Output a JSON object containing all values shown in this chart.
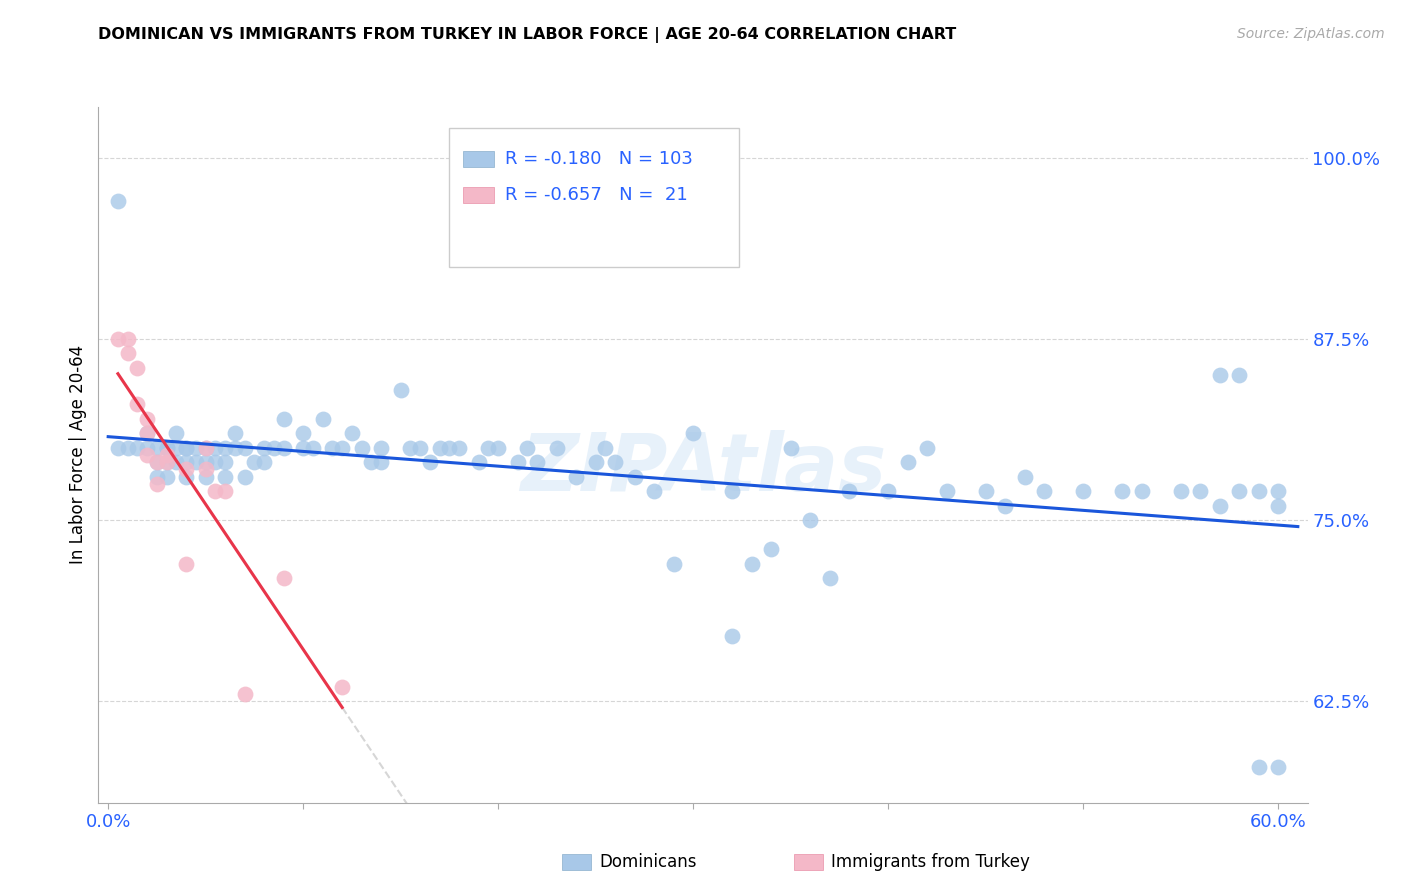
{
  "title": "DOMINICAN VS IMMIGRANTS FROM TURKEY IN LABOR FORCE | AGE 20-64 CORRELATION CHART",
  "source": "Source: ZipAtlas.com",
  "ylabel": "In Labor Force | Age 20-64",
  "xlim": [
    -0.005,
    0.615
  ],
  "ylim": [
    0.555,
    1.035
  ],
  "blue_R": -0.18,
  "blue_N": 103,
  "pink_R": -0.657,
  "pink_N": 21,
  "blue_color": "#a8c8e8",
  "pink_color": "#f4b8c8",
  "blue_line_color": "#1a56db",
  "pink_line_color": "#e8354a",
  "watermark": "ZIPAtlas",
  "legend_label_1": "Dominicans",
  "legend_label_2": "Immigrants from Turkey",
  "blue_scatter_x": [
    0.005,
    0.01,
    0.015,
    0.02,
    0.02,
    0.025,
    0.025,
    0.025,
    0.03,
    0.03,
    0.03,
    0.03,
    0.035,
    0.035,
    0.035,
    0.04,
    0.04,
    0.04,
    0.04,
    0.045,
    0.045,
    0.05,
    0.05,
    0.05,
    0.055,
    0.055,
    0.06,
    0.06,
    0.06,
    0.065,
    0.065,
    0.07,
    0.07,
    0.075,
    0.08,
    0.08,
    0.085,
    0.09,
    0.09,
    0.1,
    0.1,
    0.105,
    0.11,
    0.115,
    0.12,
    0.125,
    0.13,
    0.135,
    0.14,
    0.14,
    0.15,
    0.155,
    0.16,
    0.165,
    0.17,
    0.175,
    0.18,
    0.19,
    0.195,
    0.2,
    0.21,
    0.215,
    0.22,
    0.23,
    0.24,
    0.25,
    0.255,
    0.26,
    0.27,
    0.28,
    0.29,
    0.3,
    0.32,
    0.33,
    0.34,
    0.35,
    0.36,
    0.37,
    0.38,
    0.4,
    0.41,
    0.42,
    0.43,
    0.45,
    0.47,
    0.48,
    0.5,
    0.52,
    0.53,
    0.55,
    0.56,
    0.57,
    0.58,
    0.59,
    0.6,
    0.32,
    0.46,
    0.57,
    0.59,
    0.6,
    0.005,
    0.58,
    0.6
  ],
  "blue_scatter_y": [
    0.8,
    0.8,
    0.8,
    0.81,
    0.8,
    0.8,
    0.79,
    0.78,
    0.8,
    0.79,
    0.78,
    0.8,
    0.79,
    0.8,
    0.81,
    0.79,
    0.8,
    0.78,
    0.8,
    0.8,
    0.79,
    0.8,
    0.79,
    0.78,
    0.8,
    0.79,
    0.8,
    0.79,
    0.78,
    0.81,
    0.8,
    0.8,
    0.78,
    0.79,
    0.8,
    0.79,
    0.8,
    0.82,
    0.8,
    0.81,
    0.8,
    0.8,
    0.82,
    0.8,
    0.8,
    0.81,
    0.8,
    0.79,
    0.8,
    0.79,
    0.84,
    0.8,
    0.8,
    0.79,
    0.8,
    0.8,
    0.8,
    0.79,
    0.8,
    0.8,
    0.79,
    0.8,
    0.79,
    0.8,
    0.78,
    0.79,
    0.8,
    0.79,
    0.78,
    0.77,
    0.72,
    0.81,
    0.77,
    0.72,
    0.73,
    0.8,
    0.75,
    0.71,
    0.77,
    0.77,
    0.79,
    0.8,
    0.77,
    0.77,
    0.78,
    0.77,
    0.77,
    0.77,
    0.77,
    0.77,
    0.77,
    0.76,
    0.77,
    0.77,
    0.77,
    0.67,
    0.76,
    0.85,
    0.58,
    0.58,
    0.97,
    0.85,
    0.76
  ],
  "pink_scatter_x": [
    0.005,
    0.01,
    0.01,
    0.015,
    0.015,
    0.02,
    0.02,
    0.02,
    0.025,
    0.025,
    0.03,
    0.03,
    0.04,
    0.04,
    0.05,
    0.05,
    0.055,
    0.06,
    0.07,
    0.09,
    0.12
  ],
  "pink_scatter_y": [
    0.875,
    0.875,
    0.865,
    0.855,
    0.83,
    0.82,
    0.81,
    0.795,
    0.79,
    0.775,
    0.79,
    0.795,
    0.72,
    0.785,
    0.8,
    0.785,
    0.77,
    0.77,
    0.63,
    0.71,
    0.635
  ]
}
